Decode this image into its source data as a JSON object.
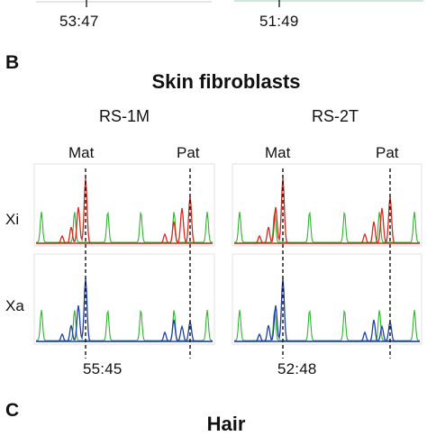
{
  "top_strip": {
    "ratio_left": "53:47",
    "ratio_right": "51:49"
  },
  "panel_b": {
    "letter": "B",
    "title": "Skin fibroblasts",
    "samples": [
      "RS-1M",
      "RS-2T"
    ],
    "allele_labels": {
      "maternal": "Mat",
      "paternal": "Pat"
    },
    "row_labels": [
      "Xi",
      "Xa"
    ],
    "ratios": [
      "55:45",
      "52:48"
    ],
    "colors": {
      "xi": "#d9291c",
      "xa": "#1f3fa8",
      "size_std": "#2fb52f"
    }
  },
  "panel_c": {
    "letter": "C",
    "title": "Hair"
  }
}
